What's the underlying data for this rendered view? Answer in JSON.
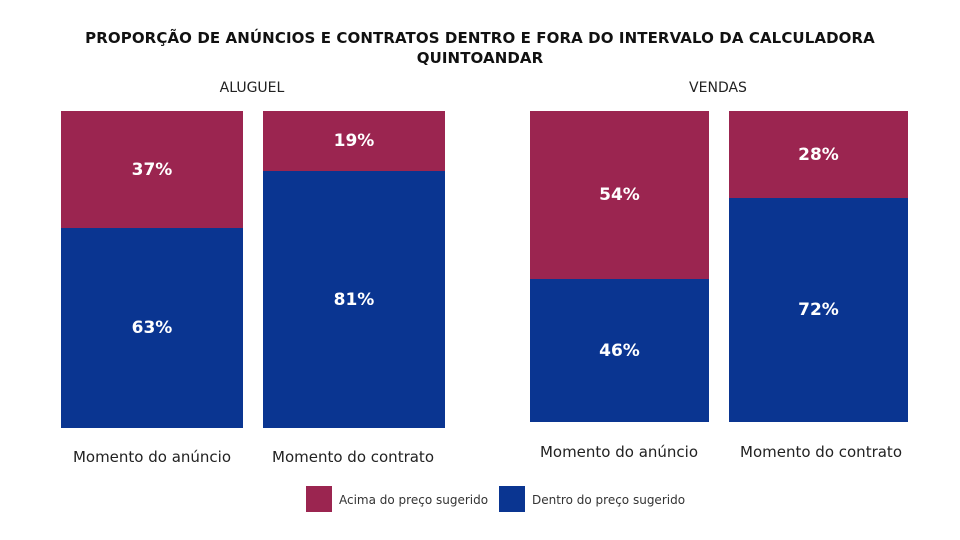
{
  "title_line1": "PROPORÇÃO DE ANÚNCIOS E CONTRATOS DENTRO E FORA DO INTERVALO DA CALCULADORA",
  "title_line2": "QUINTOANDAR",
  "colors": {
    "acima": "#9b2550",
    "dentro": "#0a3591"
  },
  "legend": {
    "acima": "Acima do preço sugerido",
    "dentro": "Dentro do preço sugerido"
  },
  "chart_data": [
    {
      "type": "bar",
      "stacked": "percent",
      "group": "ALUGUEL",
      "categories": [
        "Momento do anúncio",
        "Momento do contrato"
      ],
      "series": [
        {
          "name": "Acima do preço sugerido",
          "values": [
            37,
            19
          ],
          "labels": [
            "37%",
            "19%"
          ]
        },
        {
          "name": "Dentro do preço sugerido",
          "values": [
            63,
            81
          ],
          "labels": [
            "63%",
            "81%"
          ]
        }
      ]
    },
    {
      "type": "bar",
      "stacked": "percent",
      "group": "VENDAS",
      "categories": [
        "Momento do anúncio",
        "Momento do contrato"
      ],
      "series": [
        {
          "name": "Acima do preço sugerido",
          "values": [
            54,
            28
          ],
          "labels": [
            "54%",
            "28%"
          ]
        },
        {
          "name": "Dentro do preço sugerido",
          "values": [
            46,
            72
          ],
          "labels": [
            "46%",
            "72%"
          ]
        }
      ]
    }
  ]
}
